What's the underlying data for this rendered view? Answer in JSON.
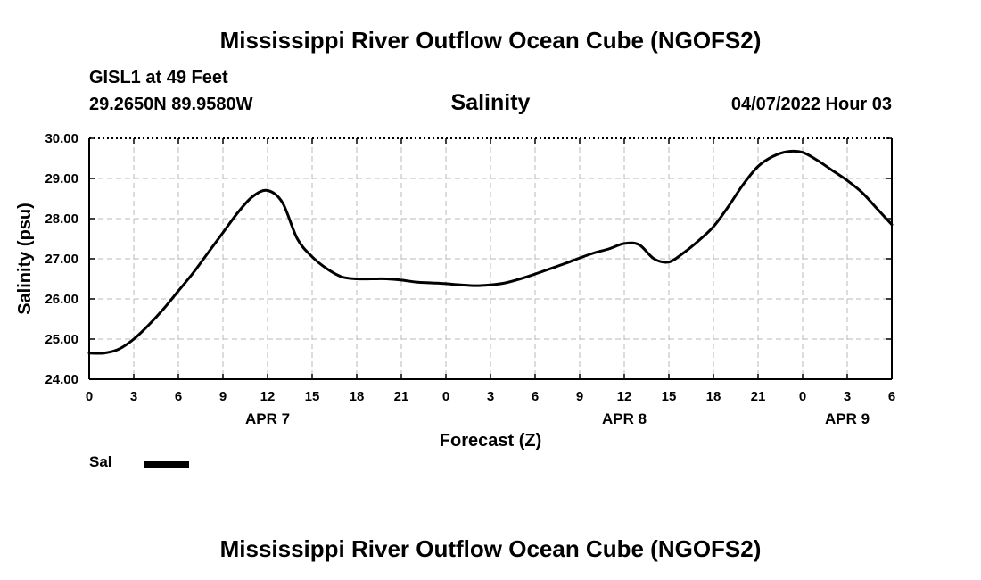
{
  "page": {
    "title": "Mississippi River Outflow Ocean Cube (NGOFS2)",
    "footer_title": "Mississippi River Outflow Ocean Cube (NGOFS2)",
    "station": "GISL1 at 49 Feet",
    "coords": "29.2650N  89.9580W",
    "timestamp": "04/07/2022 Hour 03"
  },
  "chart_data": {
    "type": "line",
    "title": "Salinity",
    "xlabel": "Forecast (Z)",
    "ylabel": "Salinity (psu)",
    "ylim": [
      24.0,
      30.0
    ],
    "xlim": [
      0,
      54
    ],
    "grid": true,
    "y_ticks": [
      "24.00",
      "25.00",
      "26.00",
      "27.00",
      "28.00",
      "29.00",
      "30.00"
    ],
    "x_tick_labels": [
      "0",
      "3",
      "6",
      "9",
      "12",
      "15",
      "18",
      "21",
      "0",
      "3",
      "6",
      "9",
      "12",
      "15",
      "18",
      "21",
      "0",
      "3",
      "6"
    ],
    "date_labels": [
      {
        "text": "APR 7",
        "hour": 12
      },
      {
        "text": "APR 8",
        "hour": 36
      },
      {
        "text": "APR 9",
        "hour": 51
      }
    ],
    "series": [
      {
        "name": "Sal",
        "color": "#000000",
        "points": [
          [
            0,
            24.65
          ],
          [
            1,
            24.65
          ],
          [
            2,
            24.75
          ],
          [
            3,
            25.0
          ],
          [
            4,
            25.35
          ],
          [
            5,
            25.75
          ],
          [
            6,
            26.2
          ],
          [
            7,
            26.65
          ],
          [
            8,
            27.15
          ],
          [
            9,
            27.65
          ],
          [
            10,
            28.15
          ],
          [
            11,
            28.55
          ],
          [
            12,
            28.7
          ],
          [
            13,
            28.4
          ],
          [
            14,
            27.5
          ],
          [
            15,
            27.05
          ],
          [
            16,
            26.75
          ],
          [
            17,
            26.55
          ],
          [
            18,
            26.5
          ],
          [
            19,
            26.5
          ],
          [
            20,
            26.5
          ],
          [
            21,
            26.47
          ],
          [
            22,
            26.42
          ],
          [
            23,
            26.4
          ],
          [
            24,
            26.38
          ],
          [
            25,
            26.35
          ],
          [
            26,
            26.33
          ],
          [
            27,
            26.35
          ],
          [
            28,
            26.4
          ],
          [
            29,
            26.5
          ],
          [
            30,
            26.62
          ],
          [
            31,
            26.75
          ],
          [
            32,
            26.88
          ],
          [
            33,
            27.02
          ],
          [
            34,
            27.15
          ],
          [
            35,
            27.25
          ],
          [
            36,
            27.38
          ],
          [
            37,
            27.35
          ],
          [
            38,
            27.0
          ],
          [
            39,
            26.92
          ],
          [
            40,
            27.15
          ],
          [
            41,
            27.45
          ],
          [
            42,
            27.8
          ],
          [
            43,
            28.3
          ],
          [
            44,
            28.85
          ],
          [
            45,
            29.3
          ],
          [
            46,
            29.55
          ],
          [
            47,
            29.67
          ],
          [
            48,
            29.65
          ],
          [
            49,
            29.45
          ],
          [
            50,
            29.2
          ],
          [
            51,
            28.95
          ],
          [
            52,
            28.65
          ],
          [
            53,
            28.25
          ],
          [
            54,
            27.85
          ]
        ]
      }
    ],
    "legend": [
      {
        "label": "Sal",
        "series": "Sal"
      }
    ],
    "legend_position": "bottom-left"
  }
}
